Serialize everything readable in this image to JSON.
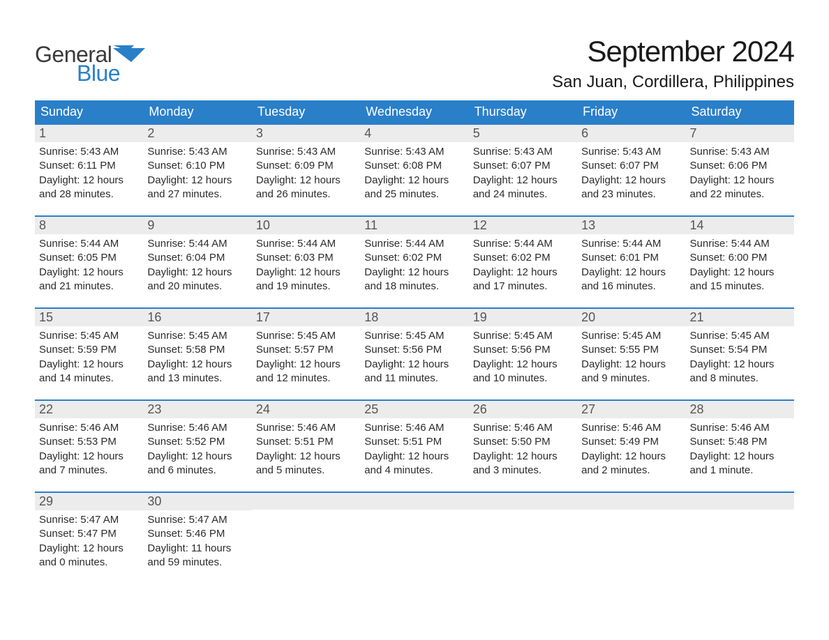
{
  "logo": {
    "text1": "General",
    "text2": "Blue",
    "flag_color": "#2a7fc9"
  },
  "title": "September 2024",
  "location": "San Juan, Cordillera, Philippines",
  "colors": {
    "header_bg": "#2a7fc9",
    "header_text": "#ffffff",
    "daynum_bg": "#ececec",
    "daynum_text": "#555555",
    "body_text": "#2b2b2b",
    "row_border": "#2a7fc9",
    "page_bg": "#ffffff"
  },
  "weekdays": [
    "Sunday",
    "Monday",
    "Tuesday",
    "Wednesday",
    "Thursday",
    "Friday",
    "Saturday"
  ],
  "weeks": [
    [
      {
        "day": "1",
        "sunrise": "Sunrise: 5:43 AM",
        "sunset": "Sunset: 6:11 PM",
        "daylight": "Daylight: 12 hours and 28 minutes."
      },
      {
        "day": "2",
        "sunrise": "Sunrise: 5:43 AM",
        "sunset": "Sunset: 6:10 PM",
        "daylight": "Daylight: 12 hours and 27 minutes."
      },
      {
        "day": "3",
        "sunrise": "Sunrise: 5:43 AM",
        "sunset": "Sunset: 6:09 PM",
        "daylight": "Daylight: 12 hours and 26 minutes."
      },
      {
        "day": "4",
        "sunrise": "Sunrise: 5:43 AM",
        "sunset": "Sunset: 6:08 PM",
        "daylight": "Daylight: 12 hours and 25 minutes."
      },
      {
        "day": "5",
        "sunrise": "Sunrise: 5:43 AM",
        "sunset": "Sunset: 6:07 PM",
        "daylight": "Daylight: 12 hours and 24 minutes."
      },
      {
        "day": "6",
        "sunrise": "Sunrise: 5:43 AM",
        "sunset": "Sunset: 6:07 PM",
        "daylight": "Daylight: 12 hours and 23 minutes."
      },
      {
        "day": "7",
        "sunrise": "Sunrise: 5:43 AM",
        "sunset": "Sunset: 6:06 PM",
        "daylight": "Daylight: 12 hours and 22 minutes."
      }
    ],
    [
      {
        "day": "8",
        "sunrise": "Sunrise: 5:44 AM",
        "sunset": "Sunset: 6:05 PM",
        "daylight": "Daylight: 12 hours and 21 minutes."
      },
      {
        "day": "9",
        "sunrise": "Sunrise: 5:44 AM",
        "sunset": "Sunset: 6:04 PM",
        "daylight": "Daylight: 12 hours and 20 minutes."
      },
      {
        "day": "10",
        "sunrise": "Sunrise: 5:44 AM",
        "sunset": "Sunset: 6:03 PM",
        "daylight": "Daylight: 12 hours and 19 minutes."
      },
      {
        "day": "11",
        "sunrise": "Sunrise: 5:44 AM",
        "sunset": "Sunset: 6:02 PM",
        "daylight": "Daylight: 12 hours and 18 minutes."
      },
      {
        "day": "12",
        "sunrise": "Sunrise: 5:44 AM",
        "sunset": "Sunset: 6:02 PM",
        "daylight": "Daylight: 12 hours and 17 minutes."
      },
      {
        "day": "13",
        "sunrise": "Sunrise: 5:44 AM",
        "sunset": "Sunset: 6:01 PM",
        "daylight": "Daylight: 12 hours and 16 minutes."
      },
      {
        "day": "14",
        "sunrise": "Sunrise: 5:44 AM",
        "sunset": "Sunset: 6:00 PM",
        "daylight": "Daylight: 12 hours and 15 minutes."
      }
    ],
    [
      {
        "day": "15",
        "sunrise": "Sunrise: 5:45 AM",
        "sunset": "Sunset: 5:59 PM",
        "daylight": "Daylight: 12 hours and 14 minutes."
      },
      {
        "day": "16",
        "sunrise": "Sunrise: 5:45 AM",
        "sunset": "Sunset: 5:58 PM",
        "daylight": "Daylight: 12 hours and 13 minutes."
      },
      {
        "day": "17",
        "sunrise": "Sunrise: 5:45 AM",
        "sunset": "Sunset: 5:57 PM",
        "daylight": "Daylight: 12 hours and 12 minutes."
      },
      {
        "day": "18",
        "sunrise": "Sunrise: 5:45 AM",
        "sunset": "Sunset: 5:56 PM",
        "daylight": "Daylight: 12 hours and 11 minutes."
      },
      {
        "day": "19",
        "sunrise": "Sunrise: 5:45 AM",
        "sunset": "Sunset: 5:56 PM",
        "daylight": "Daylight: 12 hours and 10 minutes."
      },
      {
        "day": "20",
        "sunrise": "Sunrise: 5:45 AM",
        "sunset": "Sunset: 5:55 PM",
        "daylight": "Daylight: 12 hours and 9 minutes."
      },
      {
        "day": "21",
        "sunrise": "Sunrise: 5:45 AM",
        "sunset": "Sunset: 5:54 PM",
        "daylight": "Daylight: 12 hours and 8 minutes."
      }
    ],
    [
      {
        "day": "22",
        "sunrise": "Sunrise: 5:46 AM",
        "sunset": "Sunset: 5:53 PM",
        "daylight": "Daylight: 12 hours and 7 minutes."
      },
      {
        "day": "23",
        "sunrise": "Sunrise: 5:46 AM",
        "sunset": "Sunset: 5:52 PM",
        "daylight": "Daylight: 12 hours and 6 minutes."
      },
      {
        "day": "24",
        "sunrise": "Sunrise: 5:46 AM",
        "sunset": "Sunset: 5:51 PM",
        "daylight": "Daylight: 12 hours and 5 minutes."
      },
      {
        "day": "25",
        "sunrise": "Sunrise: 5:46 AM",
        "sunset": "Sunset: 5:51 PM",
        "daylight": "Daylight: 12 hours and 4 minutes."
      },
      {
        "day": "26",
        "sunrise": "Sunrise: 5:46 AM",
        "sunset": "Sunset: 5:50 PM",
        "daylight": "Daylight: 12 hours and 3 minutes."
      },
      {
        "day": "27",
        "sunrise": "Sunrise: 5:46 AM",
        "sunset": "Sunset: 5:49 PM",
        "daylight": "Daylight: 12 hours and 2 minutes."
      },
      {
        "day": "28",
        "sunrise": "Sunrise: 5:46 AM",
        "sunset": "Sunset: 5:48 PM",
        "daylight": "Daylight: 12 hours and 1 minute."
      }
    ],
    [
      {
        "day": "29",
        "sunrise": "Sunrise: 5:47 AM",
        "sunset": "Sunset: 5:47 PM",
        "daylight": "Daylight: 12 hours and 0 minutes."
      },
      {
        "day": "30",
        "sunrise": "Sunrise: 5:47 AM",
        "sunset": "Sunset: 5:46 PM",
        "daylight": "Daylight: 11 hours and 59 minutes."
      },
      null,
      null,
      null,
      null,
      null
    ]
  ]
}
